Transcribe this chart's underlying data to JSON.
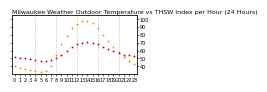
{
  "title": "Milwaukee Weather Outdoor Temperature vs THSW Index per Hour (24 Hours)",
  "hours": [
    0,
    1,
    2,
    3,
    4,
    5,
    6,
    7,
    8,
    9,
    10,
    11,
    12,
    13,
    14,
    15,
    16,
    17,
    18,
    19,
    20,
    21,
    22,
    23
  ],
  "temp": [
    52,
    51,
    50,
    49,
    48,
    47,
    47,
    48,
    51,
    55,
    60,
    65,
    68,
    70,
    71,
    70,
    68,
    65,
    62,
    59,
    57,
    55,
    54,
    53
  ],
  "thsw": [
    40,
    38,
    36,
    35,
    34,
    33,
    34,
    40,
    55,
    68,
    78,
    88,
    94,
    97,
    98,
    95,
    88,
    80,
    72,
    64,
    58,
    52,
    47,
    43
  ],
  "temp_color": "#cc0000",
  "thsw_color": "#ff8800",
  "bg_color": "#ffffff",
  "grid_color": "#aaaaaa",
  "ylim": [
    30,
    105
  ],
  "yticks": [
    40,
    50,
    60,
    70,
    80,
    90,
    100
  ],
  "ytick_labels_right": [
    "40",
    "50",
    "60",
    "70",
    "80",
    "90",
    "100"
  ],
  "vgrid_hours": [
    4,
    8,
    12,
    16,
    20
  ],
  "title_fontsize": 4.5,
  "tick_fontsize": 3.5,
  "dot_size": 1.8
}
